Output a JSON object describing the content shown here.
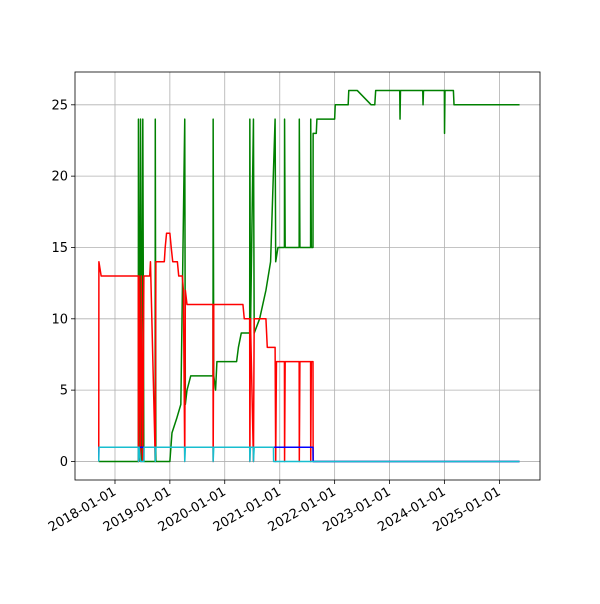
{
  "chart_data": {
    "type": "line",
    "grid": true,
    "xlim": [
      "2017-04-10",
      "2025-09-28"
    ],
    "xticks": [
      "2018-01-01",
      "2019-01-01",
      "2020-01-01",
      "2021-01-01",
      "2022-01-01",
      "2023-01-01",
      "2024-01-01",
      "2025-01-01"
    ],
    "ylim": [
      -1.3,
      27.3
    ],
    "yticks": [
      0,
      5,
      10,
      15,
      20,
      25
    ],
    "series": [
      {
        "color": "#008000",
        "x": [
          "2017-09-15",
          "2018-06-05",
          "2018-06-06",
          "2018-06-10",
          "2018-06-20",
          "2018-06-25",
          "2018-07-05",
          "2018-07-12",
          "2018-09-25",
          "2018-09-26",
          "2018-09-30",
          "2019-01-01",
          "2019-01-15",
          "2019-02-15",
          "2019-03-15",
          "2019-04-10",
          "2019-04-14",
          "2019-04-25",
          "2019-05-20",
          "2019-10-15",
          "2019-10-16",
          "2019-10-20",
          "2019-11-01",
          "2019-11-10",
          "2020-03-20",
          "2020-04-01",
          "2020-04-20",
          "2020-06-15",
          "2020-06-16",
          "2020-06-20",
          "2020-07-10",
          "2020-07-15",
          "2020-08-20",
          "2020-09-10",
          "2020-10-01",
          "2020-11-01",
          "2020-12-01",
          "2020-12-05",
          "2020-12-20",
          "2021-02-01",
          "2021-02-02",
          "2021-02-06",
          "2021-05-10",
          "2021-05-11",
          "2021-05-15",
          "2021-07-25",
          "2021-07-26",
          "2021-07-30",
          "2021-08-10",
          "2021-08-11",
          "2021-09-01",
          "2021-09-05",
          "2022-01-01",
          "2022-01-05",
          "2022-04-01",
          "2022-04-05",
          "2022-06-01",
          "2022-09-01",
          "2022-09-25",
          "2022-10-01",
          "2023-03-10",
          "2023-03-12",
          "2023-03-15",
          "2023-08-10",
          "2023-08-12",
          "2023-08-15",
          "2024-01-01",
          "2024-01-02",
          "2024-01-05",
          "2024-03-01",
          "2024-03-05",
          "2025-05-15"
        ],
        "values": [
          0,
          0,
          24,
          0,
          24,
          0,
          24,
          0,
          0,
          24,
          0,
          0,
          2,
          3,
          4,
          24,
          4,
          5,
          6,
          6,
          24,
          6,
          5,
          7,
          7,
          8,
          9,
          9,
          24,
          9,
          24,
          9,
          10,
          11,
          12,
          14,
          24,
          14,
          15,
          15,
          24,
          15,
          15,
          24,
          15,
          15,
          24,
          15,
          15,
          23,
          23,
          24,
          24,
          25,
          25,
          26,
          26,
          25,
          25,
          26,
          26,
          24,
          26,
          26,
          25,
          26,
          26,
          23,
          26,
          26,
          25,
          25
        ]
      },
      {
        "color": "#ff0000",
        "x": [
          "2017-09-15",
          "2017-09-16",
          "2017-10-01",
          "2018-06-05",
          "2018-06-06",
          "2018-06-10",
          "2018-06-20",
          "2018-06-25",
          "2018-07-05",
          "2018-07-12",
          "2018-08-20",
          "2018-08-25",
          "2018-09-26",
          "2018-09-30",
          "2018-11-25",
          "2018-12-01",
          "2018-12-10",
          "2019-01-01",
          "2019-01-10",
          "2019-01-20",
          "2019-02-20",
          "2019-03-01",
          "2019-03-25",
          "2019-04-01",
          "2019-04-10",
          "2019-04-14",
          "2019-04-25",
          "2019-10-15",
          "2019-10-16",
          "2019-10-20",
          "2020-05-01",
          "2020-05-10",
          "2020-06-15",
          "2020-06-16",
          "2020-06-20",
          "2020-07-10",
          "2020-07-15",
          "2020-10-01",
          "2020-10-10",
          "2020-12-01",
          "2020-12-05",
          "2020-12-10",
          "2021-02-01",
          "2021-02-02",
          "2021-02-06",
          "2021-05-10",
          "2021-05-11",
          "2021-05-15",
          "2021-07-25",
          "2021-07-26",
          "2021-07-30",
          "2021-08-10",
          "2021-08-11",
          "2025-05-15"
        ],
        "values": [
          0,
          14,
          13,
          13,
          0,
          13,
          0,
          13,
          0,
          13,
          13,
          14,
          0,
          14,
          14,
          15,
          16,
          16,
          15,
          14,
          14,
          13,
          13,
          12,
          0,
          12,
          11,
          11,
          0,
          11,
          11,
          10,
          10,
          0,
          10,
          0,
          10,
          10,
          8,
          8,
          0,
          7,
          7,
          0,
          7,
          7,
          0,
          7,
          7,
          0,
          7,
          7,
          0,
          0
        ]
      },
      {
        "color": "#0000ff",
        "x": [
          "2017-09-15",
          "2017-09-16",
          "2021-08-10",
          "2021-08-11",
          "2025-05-15"
        ],
        "values": [
          0,
          1,
          1,
          0,
          0
        ]
      },
      {
        "color": "#17becf",
        "x": [
          "2017-09-15",
          "2017-09-16",
          "2018-06-05",
          "2018-06-06",
          "2018-06-10",
          "2018-06-20",
          "2018-07-12",
          "2018-07-13",
          "2018-09-25",
          "2018-09-26",
          "2018-09-30",
          "2019-04-09",
          "2019-04-10",
          "2019-04-14",
          "2019-10-15",
          "2019-10-16",
          "2019-10-20",
          "2020-06-15",
          "2020-06-16",
          "2020-06-20",
          "2020-07-09",
          "2020-07-10",
          "2020-07-15",
          "2020-11-20",
          "2020-11-21",
          "2025-05-15"
        ],
        "values": [
          0,
          1,
          1,
          0,
          1,
          0,
          0,
          1,
          1,
          0,
          1,
          1,
          0,
          1,
          1,
          0,
          1,
          1,
          0,
          1,
          1,
          0,
          1,
          1,
          0,
          0
        ]
      }
    ]
  }
}
